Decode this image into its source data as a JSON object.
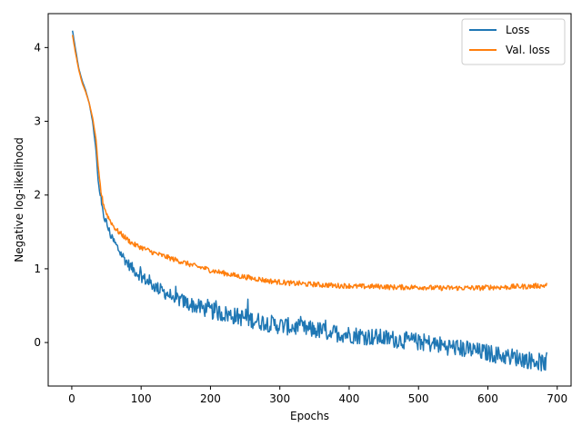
{
  "chart_data": {
    "type": "line",
    "xlabel": "Epochs",
    "ylabel": "Negative log-likelihood",
    "xlim": [
      -34,
      720
    ],
    "ylim": [
      -0.59,
      4.46
    ],
    "xticks": [
      0,
      100,
      200,
      300,
      400,
      500,
      600,
      700
    ],
    "yticks": [
      0,
      1,
      2,
      3,
      4
    ],
    "grid": false,
    "legend_position": "top-right",
    "series": [
      {
        "name": "Loss",
        "color": "#1f77b4",
        "points": [
          [
            1,
            4.23
          ],
          [
            5,
            4.0
          ],
          [
            10,
            3.72
          ],
          [
            15,
            3.55
          ],
          [
            20,
            3.42
          ],
          [
            25,
            3.25
          ],
          [
            30,
            3.0
          ],
          [
            35,
            2.6
          ],
          [
            38,
            2.2
          ],
          [
            42,
            1.9
          ],
          [
            45,
            1.75
          ],
          [
            50,
            1.62
          ],
          [
            55,
            1.48
          ],
          [
            60,
            1.38
          ],
          [
            65,
            1.3
          ],
          [
            70,
            1.22
          ],
          [
            75,
            1.15
          ],
          [
            80,
            1.08
          ],
          [
            85,
            1.03
          ],
          [
            90,
            0.98
          ],
          [
            100,
            0.9
          ],
          [
            110,
            0.82
          ],
          [
            120,
            0.76
          ],
          [
            130,
            0.7
          ],
          [
            140,
            0.65
          ],
          [
            150,
            0.6
          ],
          [
            160,
            0.56
          ],
          [
            170,
            0.52
          ],
          [
            180,
            0.49
          ],
          [
            190,
            0.46
          ],
          [
            200,
            0.43
          ],
          [
            210,
            0.41
          ],
          [
            220,
            0.39
          ],
          [
            230,
            0.37
          ],
          [
            240,
            0.35
          ],
          [
            250,
            0.33
          ],
          [
            260,
            0.31
          ],
          [
            270,
            0.29
          ],
          [
            280,
            0.27
          ],
          [
            290,
            0.25
          ],
          [
            300,
            0.23
          ],
          [
            310,
            0.22
          ],
          [
            320,
            0.21
          ],
          [
            330,
            0.19
          ],
          [
            340,
            0.18
          ],
          [
            350,
            0.17
          ],
          [
            360,
            0.16
          ],
          [
            370,
            0.14
          ],
          [
            380,
            0.13
          ],
          [
            390,
            0.12
          ],
          [
            400,
            0.11
          ],
          [
            410,
            0.1
          ],
          [
            420,
            0.09
          ],
          [
            430,
            0.08
          ],
          [
            440,
            0.07
          ],
          [
            450,
            0.06
          ],
          [
            460,
            0.05
          ],
          [
            470,
            0.04
          ],
          [
            480,
            0.03
          ],
          [
            490,
            0.02
          ],
          [
            500,
            0.01
          ],
          [
            510,
            0.0
          ],
          [
            520,
            -0.02
          ],
          [
            530,
            -0.03
          ],
          [
            540,
            -0.05
          ],
          [
            550,
            -0.06
          ],
          [
            560,
            -0.08
          ],
          [
            570,
            -0.09
          ],
          [
            580,
            -0.11
          ],
          [
            590,
            -0.13
          ],
          [
            600,
            -0.14
          ],
          [
            610,
            -0.16
          ],
          [
            620,
            -0.18
          ],
          [
            630,
            -0.19
          ],
          [
            640,
            -0.2
          ],
          [
            650,
            -0.22
          ],
          [
            660,
            -0.24
          ],
          [
            670,
            -0.25
          ],
          [
            680,
            -0.28
          ],
          [
            685,
            -0.3
          ]
        ]
      },
      {
        "name": "Val. loss",
        "color": "#ff7f0e",
        "points": [
          [
            1,
            4.17
          ],
          [
            5,
            3.95
          ],
          [
            10,
            3.7
          ],
          [
            15,
            3.52
          ],
          [
            20,
            3.4
          ],
          [
            25,
            3.25
          ],
          [
            30,
            3.05
          ],
          [
            35,
            2.75
          ],
          [
            38,
            2.4
          ],
          [
            42,
            2.05
          ],
          [
            45,
            1.9
          ],
          [
            50,
            1.75
          ],
          [
            55,
            1.66
          ],
          [
            60,
            1.58
          ],
          [
            65,
            1.52
          ],
          [
            70,
            1.48
          ],
          [
            75,
            1.44
          ],
          [
            80,
            1.4
          ],
          [
            85,
            1.36
          ],
          [
            90,
            1.33
          ],
          [
            100,
            1.29
          ],
          [
            110,
            1.25
          ],
          [
            120,
            1.21
          ],
          [
            130,
            1.18
          ],
          [
            140,
            1.15
          ],
          [
            150,
            1.12
          ],
          [
            160,
            1.09
          ],
          [
            170,
            1.06
          ],
          [
            180,
            1.03
          ],
          [
            190,
            1.01
          ],
          [
            200,
            0.98
          ],
          [
            210,
            0.96
          ],
          [
            220,
            0.94
          ],
          [
            230,
            0.92
          ],
          [
            240,
            0.9
          ],
          [
            250,
            0.89
          ],
          [
            260,
            0.87
          ],
          [
            270,
            0.86
          ],
          [
            280,
            0.84
          ],
          [
            290,
            0.83
          ],
          [
            300,
            0.82
          ],
          [
            310,
            0.81
          ],
          [
            320,
            0.8
          ],
          [
            330,
            0.8
          ],
          [
            340,
            0.79
          ],
          [
            350,
            0.79
          ],
          [
            360,
            0.78
          ],
          [
            370,
            0.78
          ],
          [
            380,
            0.77
          ],
          [
            390,
            0.77
          ],
          [
            400,
            0.77
          ],
          [
            410,
            0.76
          ],
          [
            420,
            0.76
          ],
          [
            430,
            0.76
          ],
          [
            440,
            0.76
          ],
          [
            450,
            0.76
          ],
          [
            460,
            0.75
          ],
          [
            470,
            0.75
          ],
          [
            480,
            0.75
          ],
          [
            490,
            0.75
          ],
          [
            500,
            0.75
          ],
          [
            510,
            0.75
          ],
          [
            520,
            0.74
          ],
          [
            530,
            0.74
          ],
          [
            540,
            0.74
          ],
          [
            550,
            0.74
          ],
          [
            560,
            0.74
          ],
          [
            570,
            0.74
          ],
          [
            580,
            0.74
          ],
          [
            590,
            0.74
          ],
          [
            600,
            0.75
          ],
          [
            610,
            0.75
          ],
          [
            620,
            0.75
          ],
          [
            630,
            0.75
          ],
          [
            640,
            0.76
          ],
          [
            650,
            0.76
          ],
          [
            660,
            0.76
          ],
          [
            670,
            0.77
          ],
          [
            680,
            0.77
          ],
          [
            685,
            0.78
          ]
        ]
      }
    ]
  }
}
